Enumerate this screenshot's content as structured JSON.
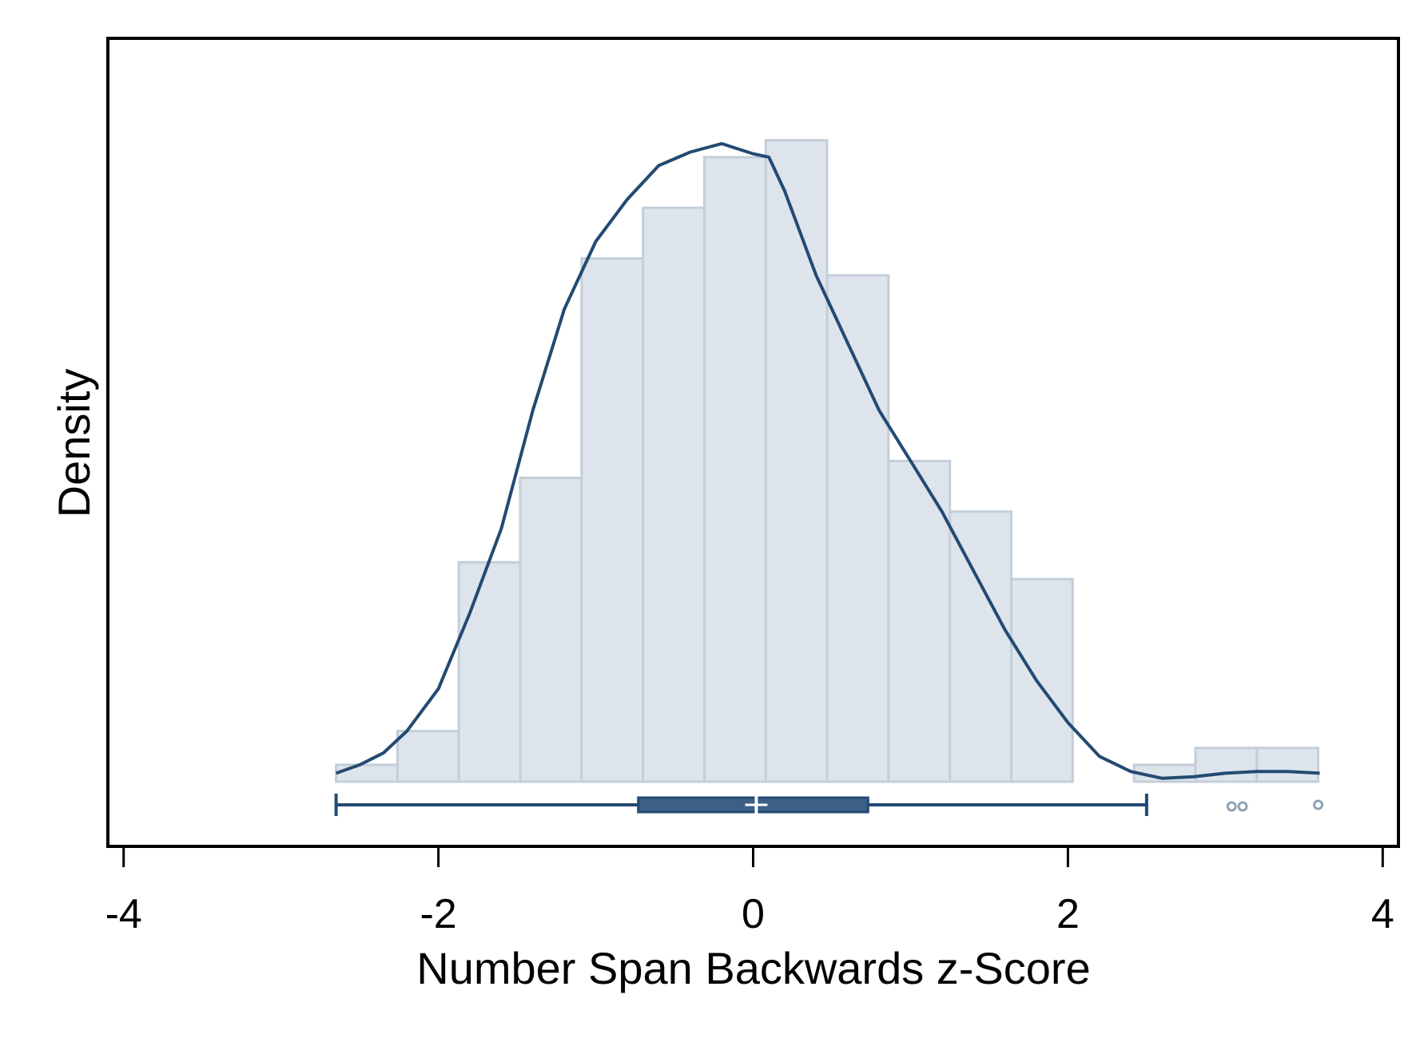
{
  "chart_data": {
    "type": "bar",
    "xlabel": "Number Span Backwards z-Score",
    "ylabel": "Density",
    "xlim": [
      -4.1,
      4.1
    ],
    "ylim": [
      0,
      0.43
    ],
    "x_ticks": [
      "-4",
      "-2",
      "0",
      "2",
      "4"
    ],
    "x_tick_values": [
      -4,
      -2,
      0,
      2,
      4
    ],
    "grid": false,
    "legend": "none",
    "histogram": {
      "bin_edges": [
        -2.65,
        -2.26,
        -1.87,
        -1.48,
        -1.09,
        -0.7,
        -0.31,
        0.08,
        0.47,
        0.86,
        1.25,
        1.64,
        2.03,
        2.42,
        2.81,
        3.2,
        3.59
      ],
      "density": [
        0.01,
        0.03,
        0.13,
        0.18,
        0.31,
        0.34,
        0.37,
        0.38,
        0.3,
        0.19,
        0.16,
        0.12,
        0.0,
        0.01,
        0.02,
        0.02
      ]
    },
    "kde": {
      "x": [
        -2.65,
        -2.5,
        -2.35,
        -2.2,
        -2.0,
        -1.8,
        -1.6,
        -1.4,
        -1.2,
        -1.0,
        -0.8,
        -0.6,
        -0.4,
        -0.2,
        0.0,
        0.1,
        0.2,
        0.4,
        0.6,
        0.8,
        1.0,
        1.2,
        1.4,
        1.6,
        1.8,
        2.0,
        2.2,
        2.4,
        2.6,
        2.8,
        3.0,
        3.2,
        3.4,
        3.6
      ],
      "y": [
        0.005,
        0.01,
        0.017,
        0.03,
        0.055,
        0.1,
        0.15,
        0.22,
        0.28,
        0.32,
        0.345,
        0.365,
        0.373,
        0.378,
        0.372,
        0.37,
        0.35,
        0.3,
        0.26,
        0.22,
        0.19,
        0.16,
        0.125,
        0.09,
        0.06,
        0.035,
        0.015,
        0.006,
        0.002,
        0.003,
        0.005,
        0.006,
        0.006,
        0.005
      ]
    },
    "boxplot": {
      "whisker_low": -2.65,
      "q1": -0.73,
      "median": 0.02,
      "q3": 0.73,
      "whisker_high": 2.5,
      "outliers": [
        3.04,
        3.11,
        3.59
      ]
    },
    "colors": {
      "bar_fill": "#dde4ec",
      "bar_stroke": "#c3ced9",
      "line": "#234a72",
      "box": "#3c5f86",
      "outlier": "#8fa3b6",
      "frame": "#000000"
    }
  }
}
